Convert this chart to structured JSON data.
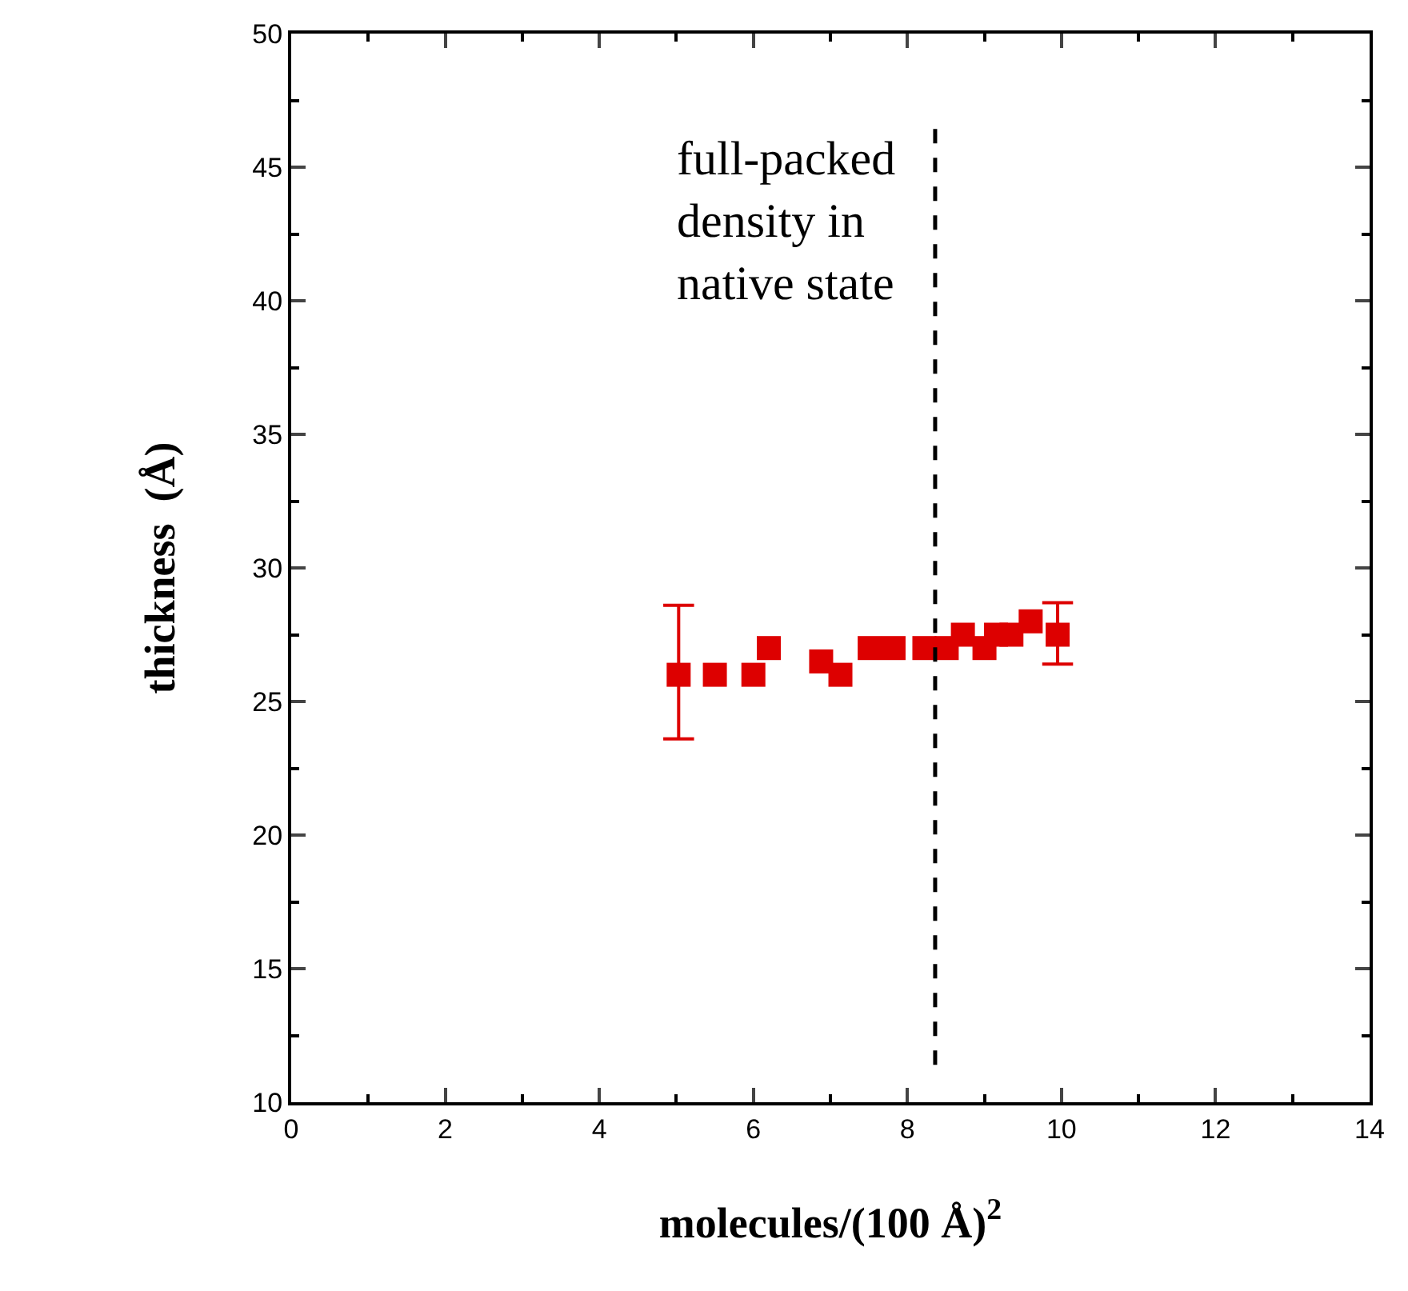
{
  "chart_data": {
    "type": "scatter",
    "xlabel": "molecules/(100 Å)$^{2}$",
    "ylabel": "thickness  (Å)",
    "x": [
      5.03,
      5.5,
      6.0,
      6.2,
      6.88,
      7.13,
      7.51,
      7.82,
      8.22,
      8.51,
      8.72,
      9.0,
      9.15,
      9.35,
      9.6,
      9.95
    ],
    "series": [
      {
        "color": "#dd0000",
        "values": [
          26,
          26,
          26,
          27,
          26.5,
          26,
          27,
          27,
          27,
          27,
          27.5,
          27,
          27.5,
          27.5,
          28,
          27.5
        ],
        "errors": [
          [
            23.6,
            28.6
          ],
          null,
          null,
          null,
          null,
          null,
          null,
          null,
          null,
          null,
          null,
          null,
          null,
          null,
          null,
          [
            26.4,
            28.7
          ]
        ]
      }
    ],
    "marker": "square",
    "xlim": [
      0,
      14
    ],
    "ylim": [
      10,
      50
    ],
    "xticks": [
      0,
      2,
      4,
      6,
      8,
      10,
      12,
      14
    ],
    "yticks": [
      10,
      15,
      20,
      25,
      30,
      35,
      40,
      45,
      50
    ],
    "ref_lines": [
      {
        "axis": "x",
        "value": 8.36,
        "label": "full-packed\ndensity in\nnative state",
        "color": "#000000",
        "line_style": "dashed"
      }
    ]
  }
}
